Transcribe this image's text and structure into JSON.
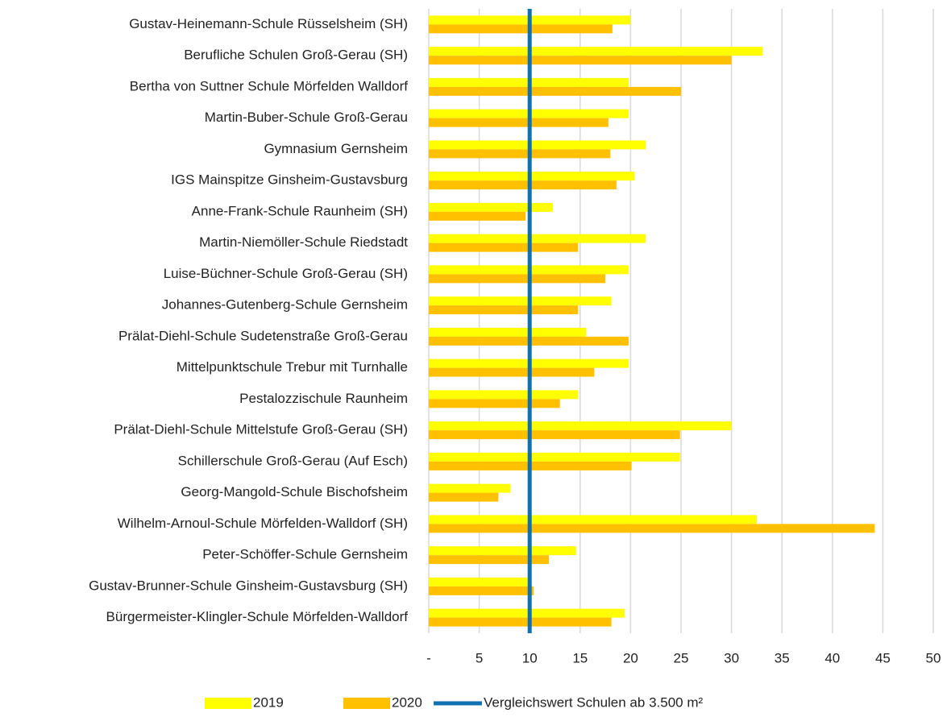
{
  "chart_data": {
    "type": "hbar",
    "categories": [
      "Gustav-Heinemann-Schule Rüsselsheim (SH)",
      "Berufliche Schulen Groß-Gerau (SH)",
      "Bertha von Suttner Schule Mörfelden Walldorf",
      "Martin-Buber-Schule Groß-Gerau",
      "Gymnasium Gernsheim",
      "IGS Mainspitze Ginsheim-Gustavsburg",
      "Anne-Frank-Schule Raunheim (SH)",
      "Martin-Niemöller-Schule Riedstadt",
      "Luise-Büchner-Schule Groß-Gerau (SH)",
      "Johannes-Gutenberg-Schule Gernsheim",
      "Prälat-Diehl-Schule Sudetenstraße Groß-Gerau",
      "Mittelpunktschule Trebur mit Turnhalle",
      "Pestalozzischule Raunheim",
      "Prälat-Diehl-Schule Mittelstufe Groß-Gerau (SH)",
      "Schillerschule Groß-Gerau (Auf Esch)",
      "Georg-Mangold-Schule Bischofsheim",
      "Wilhelm-Arnoul-Schule Mörfelden-Walldorf (SH)",
      "Peter-Schöffer-Schule Gernsheim",
      "Gustav-Brunner-Schule Ginsheim-Gustavsburg (SH)",
      "Bürgermeister-Klingler-Schule Mörfelden-Walldorf"
    ],
    "series": [
      {
        "name": "2019",
        "color": "#ffff00",
        "values": [
          20.0,
          33.1,
          19.8,
          19.8,
          21.5,
          20.4,
          12.3,
          21.5,
          19.8,
          18.1,
          15.6,
          19.8,
          14.8,
          30.0,
          24.9,
          8.1,
          32.5,
          14.6,
          9.8,
          19.4
        ]
      },
      {
        "name": "2020",
        "color": "#ffc000",
        "values": [
          18.2,
          30.0,
          25.0,
          17.8,
          18.0,
          18.6,
          9.6,
          14.8,
          17.5,
          14.8,
          19.8,
          16.4,
          13.0,
          24.9,
          20.1,
          6.9,
          44.2,
          11.9,
          10.4,
          18.1
        ]
      }
    ],
    "reference_line": {
      "name": "Vergleichswert Schulen ab 3.500 m²",
      "value": 10,
      "color": "#1070b0"
    },
    "xlim": [
      0,
      50
    ],
    "xticks": [
      {
        "value": 0,
        "label": "-"
      },
      5,
      10,
      15,
      20,
      25,
      30,
      35,
      40,
      45,
      50
    ],
    "grid": true,
    "legend": "bottom"
  }
}
